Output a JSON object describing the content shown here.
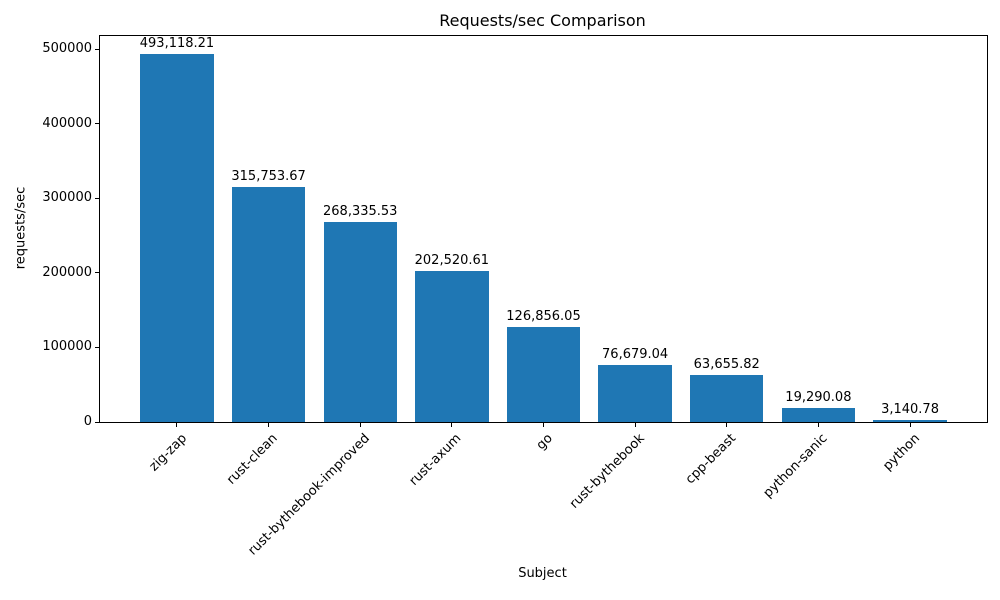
{
  "chart_data": {
    "type": "bar",
    "title": "Requests/sec Comparison",
    "xlabel": "Subject",
    "ylabel": "requests/sec",
    "categories": [
      "zig-zap",
      "rust-clean",
      "rust-bythebook-improved",
      "rust-axum",
      "go",
      "rust-bythebook",
      "cpp-beast",
      "python-sanic",
      "python"
    ],
    "values": [
      493118.21,
      315753.67,
      268335.53,
      202520.61,
      126856.05,
      76679.04,
      63655.82,
      19290.08,
      3140.78
    ],
    "bar_labels": [
      "493,118.21",
      "315,753.67",
      "268,335.53",
      "202,520.61",
      "126,856.05",
      "76,679.04",
      "63,655.82",
      "19,290.08",
      "3,140.78"
    ],
    "ylim": [
      0,
      517774
    ],
    "yticks": {
      "values": [
        0,
        100000,
        200000,
        300000,
        400000,
        500000
      ],
      "labels": [
        "0",
        "100000",
        "200000",
        "300000",
        "400000",
        "500000"
      ]
    },
    "bar_color": "#1f77b4",
    "text_color": "#000000",
    "grid": false,
    "legend": null
  }
}
